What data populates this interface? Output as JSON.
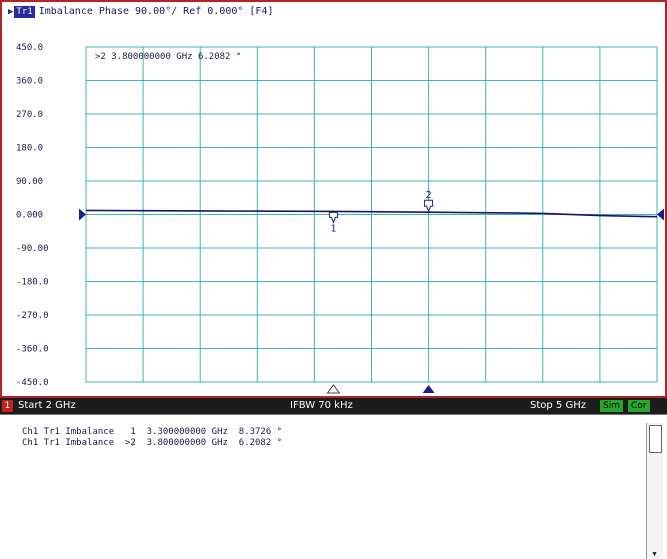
{
  "trace_header": {
    "badge": "Tr1",
    "title": "Imbalance Phase 90.00°/ Ref 0.000° [F4]",
    "marker_readout": ">2  3.800000000 GHz  6.2082 °"
  },
  "chart_data": {
    "type": "line",
    "ylim": [
      -450,
      450
    ],
    "xlim": [
      2,
      5
    ],
    "y_ticks": [
      "450.0",
      "360.0",
      "270.0",
      "180.0",
      "90.00",
      "0.000",
      "-90.00",
      "-180.0",
      "-270.0",
      "-360.0",
      "-450.0"
    ],
    "x_gridlines": 10,
    "grid": true,
    "reference_level": 0,
    "series": [
      {
        "values": [
          {
            "x": 2.0,
            "y": 11.0
          },
          {
            "x": 2.3,
            "y": 10.2
          },
          {
            "x": 2.6,
            "y": 9.6
          },
          {
            "x": 3.0,
            "y": 9.0
          },
          {
            "x": 3.3,
            "y": 8.37
          },
          {
            "x": 3.5,
            "y": 7.4
          },
          {
            "x": 3.8,
            "y": 6.21
          },
          {
            "x": 4.2,
            "y": 4.3
          },
          {
            "x": 4.4,
            "y": 2.9
          },
          {
            "x": 4.7,
            "y": -3.0
          },
          {
            "x": 5.0,
            "y": -6.0
          }
        ]
      }
    ],
    "markers": [
      {
        "label": "1",
        "x": 3.3,
        "y": 8.3726
      },
      {
        "label": "2",
        "x": 3.8,
        "y": 6.2082,
        "active": true
      }
    ]
  },
  "status_bar": {
    "channel": "1",
    "start": "Start 2 GHz",
    "ifbw": "IFBW 70 kHz",
    "stop": "Stop 5 GHz",
    "sim": "Sim",
    "cor": "Cor"
  },
  "marker_table": [
    "Ch1 Tr1 Imbalance   1  3.300000000 GHz  8.3726 °",
    "Ch1 Tr1 Imbalance  >2  3.800000000 GHz  6.2082 °"
  ],
  "colors": {
    "grid": "#3fb5b1",
    "trace": "#14146e",
    "frame": "#b02626",
    "marker": "#1c1c8a"
  }
}
